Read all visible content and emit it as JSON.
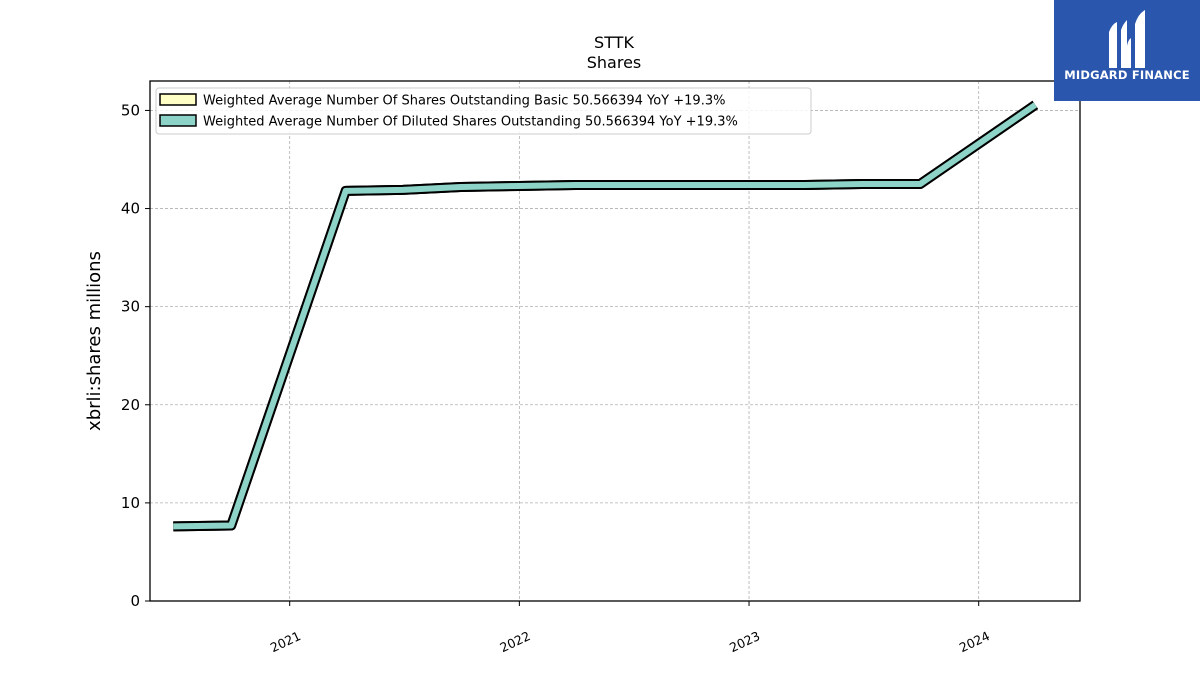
{
  "chart_data": {
    "type": "line",
    "title": "STTK",
    "subtitle": "Shares",
    "ylabel": "xbrli:shares millions",
    "xlabel": "",
    "ylim": [
      0,
      53
    ],
    "xlim": [
      "2020-05-24",
      "2024-06-10"
    ],
    "yticks": [
      0,
      10,
      20,
      30,
      40,
      50
    ],
    "xticks": [
      "2021",
      "2022",
      "2023",
      "2024"
    ],
    "grid": true,
    "legend_position": "top-left",
    "series": [
      {
        "name": "Weighted Average Number Of Shares Outstanding Basic",
        "legend": "Weighted Average Number Of Shares Outstanding Basic  50.566394 YoY +19.3%",
        "color": "#ffffc6",
        "x": [
          "2020-06-30",
          "2020-09-30",
          "2021-03-31",
          "2021-06-30",
          "2021-09-30",
          "2021-12-31",
          "2022-03-31",
          "2022-06-30",
          "2022-09-30",
          "2022-12-31",
          "2023-03-31",
          "2023-06-30",
          "2023-09-30",
          "2024-03-31"
        ],
        "values": [
          7.6,
          7.7,
          41.8,
          41.9,
          42.2,
          42.3,
          42.4,
          42.4,
          42.4,
          42.4,
          42.4,
          42.5,
          42.5,
          50.566394
        ]
      },
      {
        "name": "Weighted Average Number Of Diluted Shares Outstanding",
        "legend": "Weighted Average Number Of Diluted Shares Outstanding  50.566394 YoY +19.3%",
        "color": "#8dd3c7",
        "x": [
          "2020-06-30",
          "2020-09-30",
          "2021-03-31",
          "2021-06-30",
          "2021-09-30",
          "2021-12-31",
          "2022-03-31",
          "2022-06-30",
          "2022-09-30",
          "2022-12-31",
          "2023-03-31",
          "2023-06-30",
          "2023-09-30",
          "2024-03-31"
        ],
        "values": [
          7.6,
          7.7,
          41.8,
          41.9,
          42.2,
          42.3,
          42.4,
          42.4,
          42.4,
          42.4,
          42.4,
          42.5,
          42.5,
          50.566394
        ]
      }
    ]
  },
  "logo": {
    "text": "MIDGARD FINANCE"
  }
}
